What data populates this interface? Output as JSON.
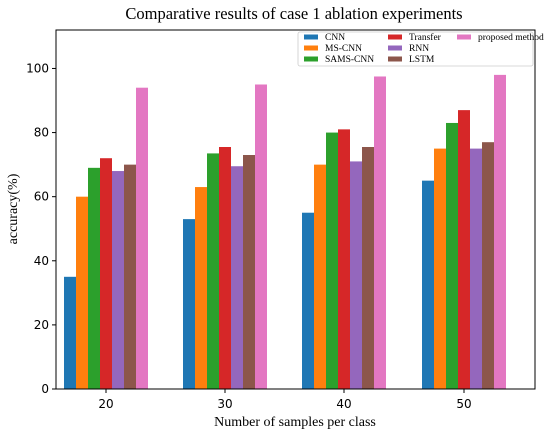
{
  "chart_data": {
    "type": "bar",
    "title": "Comparative results of case 1 ablation experiments",
    "xlabel": "Number of samples per class",
    "ylabel": "accuracy(%)",
    "categories": [
      "20",
      "30",
      "40",
      "50"
    ],
    "ylim": [
      0,
      112
    ],
    "yticks": [
      0,
      20,
      40,
      60,
      80,
      100
    ],
    "grid": false,
    "legend_position": "top-right",
    "series": [
      {
        "name": "CNN",
        "color": "#1f77b4",
        "values": [
          35,
          53,
          55,
          65
        ]
      },
      {
        "name": "MS-CNN",
        "color": "#ff7f0e",
        "values": [
          60,
          63,
          70,
          75
        ]
      },
      {
        "name": "SAMS-CNN",
        "color": "#2ca02c",
        "values": [
          69,
          73.5,
          80,
          83
        ]
      },
      {
        "name": "Transfer",
        "color": "#d62728",
        "values": [
          72,
          75.5,
          81,
          87
        ]
      },
      {
        "name": "RNN",
        "color": "#9467bd",
        "values": [
          68,
          69.5,
          71,
          75
        ]
      },
      {
        "name": "LSTM",
        "color": "#8c564b",
        "values": [
          70,
          73,
          75.5,
          77
        ]
      },
      {
        "name": "proposed method",
        "color": "#e377c2",
        "values": [
          94,
          95,
          97.5,
          98
        ]
      }
    ]
  }
}
